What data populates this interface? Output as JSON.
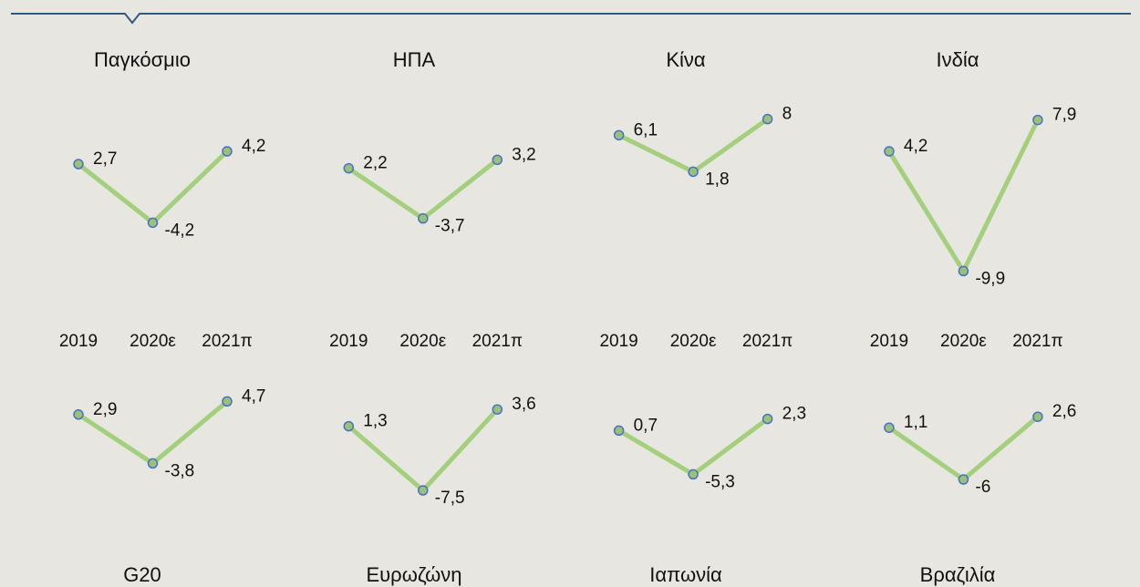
{
  "chart_data": [
    {
      "type": "line",
      "title": "Παγκόσμιο",
      "categories": [
        "2019",
        "2020ε",
        "2021π"
      ],
      "values": [
        2.7,
        -4.2,
        4.2
      ],
      "value_labels": [
        "2,7",
        "-4,2",
        "4,2"
      ],
      "ylim": [
        -12,
        10
      ],
      "color": "#a4d07e",
      "marker_color": "#9cc07a",
      "marker_edge": "#4472c4"
    },
    {
      "type": "line",
      "title": "ΗΠΑ",
      "categories": [
        "2019",
        "2020ε",
        "2021π"
      ],
      "values": [
        2.2,
        -3.7,
        3.2
      ],
      "value_labels": [
        "2,2",
        "-3,7",
        "3,2"
      ],
      "ylim": [
        -12,
        10
      ],
      "color": "#a4d07e",
      "marker_color": "#9cc07a",
      "marker_edge": "#4472c4"
    },
    {
      "type": "line",
      "title": "Κίνα",
      "categories": [
        "2019",
        "2020ε",
        "2021π"
      ],
      "values": [
        6.1,
        1.8,
        8
      ],
      "value_labels": [
        "6,1",
        "1,8",
        "8"
      ],
      "ylim": [
        -12,
        10
      ],
      "color": "#a4d07e",
      "marker_color": "#9cc07a",
      "marker_edge": "#4472c4"
    },
    {
      "type": "line",
      "title": "Ινδία",
      "categories": [
        "2019",
        "2020ε",
        "2021π"
      ],
      "values": [
        4.2,
        -9.9,
        7.9
      ],
      "value_labels": [
        "4,2",
        "-9,9",
        "7,9"
      ],
      "ylim": [
        -12,
        10
      ],
      "color": "#a4d07e",
      "marker_color": "#9cc07a",
      "marker_edge": "#4472c4"
    },
    {
      "type": "line",
      "title": "G20",
      "categories": [
        null,
        null,
        null
      ],
      "values": [
        2.9,
        -3.8,
        4.7
      ],
      "value_labels": [
        "2,9",
        "-3,8",
        "4,7"
      ],
      "ylim": [
        -10,
        6
      ],
      "color": "#a4d07e",
      "marker_color": "#9cc07a",
      "marker_edge": "#4472c4"
    },
    {
      "type": "line",
      "title": "Ευρωζώνη",
      "categories": [
        null,
        null,
        null
      ],
      "values": [
        1.3,
        -7.5,
        3.6
      ],
      "value_labels": [
        "1,3",
        "-7,5",
        "3,6"
      ],
      "ylim": [
        -10,
        6
      ],
      "color": "#a4d07e",
      "marker_color": "#9cc07a",
      "marker_edge": "#4472c4"
    },
    {
      "type": "line",
      "title": "Ιαπωνία",
      "categories": [
        null,
        null,
        null
      ],
      "values": [
        0.7,
        -5.3,
        2.3
      ],
      "value_labels": [
        "0,7",
        "-5,3",
        "2,3"
      ],
      "ylim": [
        -10,
        6
      ],
      "color": "#a4d07e",
      "marker_color": "#9cc07a",
      "marker_edge": "#4472c4"
    },
    {
      "type": "line",
      "title": "Βραζιλία",
      "categories": [
        null,
        null,
        null
      ],
      "values": [
        1.1,
        -6,
        2.6
      ],
      "value_labels": [
        "1,1",
        "-6",
        "2,6"
      ],
      "ylim": [
        -10,
        6
      ],
      "color": "#a4d07e",
      "marker_color": "#9cc07a",
      "marker_edge": "#4472c4"
    }
  ]
}
